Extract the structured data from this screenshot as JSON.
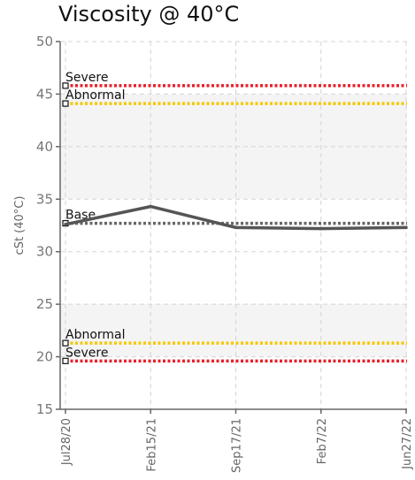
{
  "chart_data": {
    "type": "line",
    "title": "Viscosity @ 40°C",
    "ylabel": "cSt (40°C)",
    "xlabel": "",
    "ylim": [
      15,
      50
    ],
    "yticks": [
      15,
      20,
      25,
      30,
      35,
      40,
      45,
      50
    ],
    "categories": [
      "Jul28/20",
      "Feb15/21",
      "Sep17/21",
      "Feb7/22",
      "Jun27/22"
    ],
    "series": [
      {
        "values": [
          32.6,
          34.3,
          32.3,
          32.2,
          32.3
        ],
        "color": "#555555"
      }
    ],
    "reference_lines": [
      {
        "label": "Severe",
        "value": 45.8,
        "color": "#e8202a"
      },
      {
        "label": "Abnormal",
        "value": 44.1,
        "color": "#f5c800"
      },
      {
        "label": "Base",
        "value": 32.7,
        "color": "#666666"
      },
      {
        "label": "Abnormal",
        "value": 21.3,
        "color": "#f5c800"
      },
      {
        "label": "Severe",
        "value": 19.6,
        "color": "#e8202a"
      }
    ],
    "shaded_bands": [
      [
        35,
        45
      ],
      [
        20,
        25
      ]
    ],
    "grid": true,
    "legend": "none"
  }
}
